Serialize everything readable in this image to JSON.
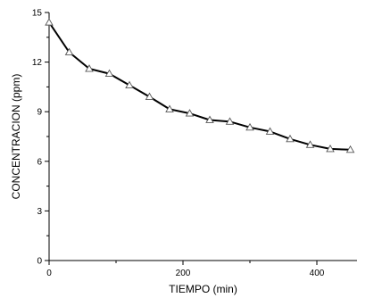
{
  "chart_data": {
    "type": "line",
    "title": "",
    "xlabel": "TIEMPO (min)",
    "ylabel": "CONCENTRACION (ppm)",
    "xlim": [
      0,
      460
    ],
    "ylim": [
      0,
      15
    ],
    "x_ticks": [
      0,
      200,
      400
    ],
    "y_ticks": [
      0,
      3,
      6,
      9,
      12,
      15
    ],
    "x_tick_labels": [
      "0",
      "200",
      "400"
    ],
    "y_tick_labels": [
      "0",
      "3",
      "6",
      "9",
      "12",
      "15"
    ],
    "grid": false,
    "legend": "none",
    "marker": "open-triangle",
    "line_color": "#000000",
    "series": [
      {
        "x": [
          0,
          30,
          60,
          90,
          120,
          150,
          180,
          210,
          240,
          270,
          300,
          330,
          360,
          390,
          420,
          450
        ],
        "values": [
          14.4,
          12.6,
          11.6,
          11.3,
          10.6,
          9.9,
          9.15,
          8.9,
          8.5,
          8.4,
          8.05,
          7.8,
          7.35,
          7.0,
          6.75,
          6.7
        ]
      }
    ]
  }
}
